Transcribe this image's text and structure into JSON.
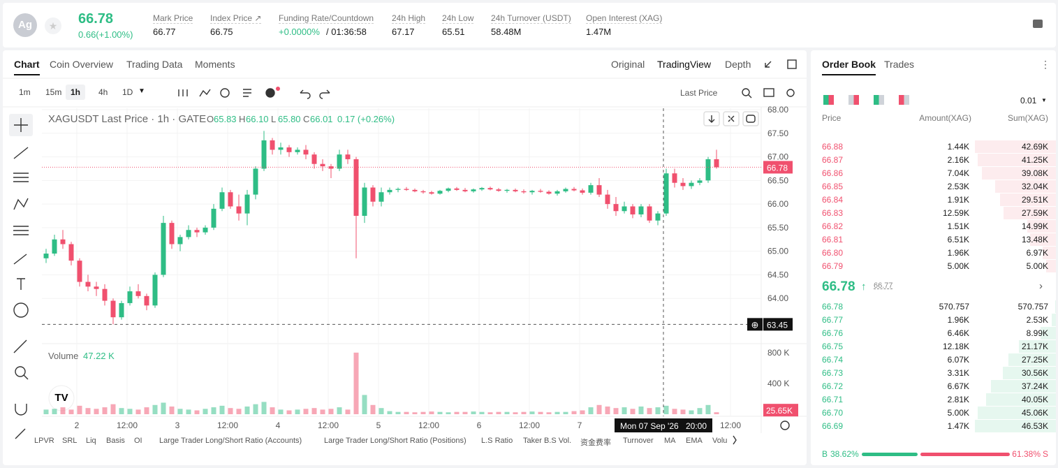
{
  "header": {
    "symbol_icon": "Ag",
    "price": "66.78",
    "change": "0.66(+1.00%)",
    "stats": [
      {
        "label": "Mark Price",
        "value": "66.77"
      },
      {
        "label": "Index Price ↗",
        "value": "66.75"
      },
      {
        "label": "Funding Rate/Countdown",
        "value": "+0.0000%",
        "extra": "/ 01:36:58"
      },
      {
        "label": "24h High",
        "value": "67.17"
      },
      {
        "label": "24h Low",
        "value": "65.51"
      },
      {
        "label": "24h Turnover (USDT)",
        "value": "58.48M"
      },
      {
        "label": "Open Interest (XAG)",
        "value": "1.47M"
      }
    ]
  },
  "tabs": [
    "Chart",
    "Coin Overview",
    "Trading Data",
    "Moments"
  ],
  "chart_modes": [
    "Original",
    "TradingView",
    "Depth"
  ],
  "intervals": [
    "1m",
    "15m",
    "1h",
    "4h",
    "1D"
  ],
  "price_type": "Last Price",
  "chart_data": {
    "type": "candlestick",
    "title": "XAGUSDT Last Price · 1h · GATE",
    "legend": [
      {
        "key": "O",
        "value": "65.83"
      },
      {
        "key": "H",
        "value": "66.10"
      },
      {
        "key": "L",
        "value": "65.80"
      },
      {
        "key": "C",
        "value": "66.01"
      }
    ],
    "legend_change": "0.17 (+0.26%)",
    "up_color": "#2ebd85",
    "down_color": "#f0506e",
    "candles": [
      [
        64.85,
        65.05,
        64.75,
        64.95
      ],
      [
        64.95,
        65.35,
        64.9,
        65.25
      ],
      [
        65.25,
        65.45,
        65.05,
        65.15
      ],
      [
        65.15,
        65.2,
        64.7,
        64.8
      ],
      [
        64.8,
        64.85,
        64.25,
        64.35
      ],
      [
        64.35,
        64.5,
        64.15,
        64.25
      ],
      [
        64.25,
        64.35,
        64.05,
        64.2
      ],
      [
        64.2,
        64.3,
        63.85,
        63.95
      ],
      [
        63.95,
        64.0,
        63.45,
        63.6
      ],
      [
        63.6,
        63.95,
        63.55,
        63.9
      ],
      [
        63.9,
        64.25,
        63.85,
        64.15
      ],
      [
        64.15,
        64.3,
        64.0,
        64.05
      ],
      [
        64.05,
        64.1,
        63.75,
        63.85
      ],
      [
        63.85,
        64.55,
        63.8,
        64.5
      ],
      [
        64.5,
        65.75,
        64.45,
        65.6
      ],
      [
        65.6,
        65.65,
        65.05,
        65.15
      ],
      [
        65.15,
        65.35,
        65.0,
        65.3
      ],
      [
        65.3,
        65.55,
        65.25,
        65.45
      ],
      [
        65.45,
        65.5,
        65.3,
        65.4
      ],
      [
        65.4,
        65.55,
        65.35,
        65.5
      ],
      [
        65.5,
        66.0,
        65.45,
        65.9
      ],
      [
        65.9,
        66.35,
        65.85,
        66.25
      ],
      [
        66.25,
        66.3,
        65.9,
        65.95
      ],
      [
        65.95,
        66.2,
        65.65,
        65.8
      ],
      [
        65.8,
        66.3,
        65.55,
        66.2
      ],
      [
        66.2,
        66.8,
        66.1,
        66.75
      ],
      [
        66.75,
        67.55,
        66.7,
        67.35
      ],
      [
        67.35,
        67.4,
        67.05,
        67.15
      ],
      [
        67.15,
        67.3,
        67.05,
        67.2
      ],
      [
        67.2,
        67.25,
        67.0,
        67.1
      ],
      [
        67.1,
        67.2,
        67.05,
        67.15
      ],
      [
        67.15,
        67.25,
        66.95,
        67.05
      ],
      [
        67.05,
        67.1,
        66.75,
        66.85
      ],
      [
        66.85,
        66.95,
        66.7,
        66.8
      ],
      [
        66.8,
        66.85,
        66.55,
        66.75
      ],
      [
        66.75,
        67.15,
        66.7,
        67.05
      ],
      [
        67.05,
        67.15,
        66.85,
        66.95
      ],
      [
        66.95,
        67.0,
        64.85,
        65.75
      ],
      [
        65.75,
        66.45,
        65.6,
        66.35
      ],
      [
        66.35,
        66.4,
        65.95,
        66.05
      ],
      [
        66.05,
        66.35,
        65.95,
        66.25
      ],
      [
        66.25,
        66.35,
        66.2,
        66.3
      ],
      [
        66.3,
        66.35,
        66.25,
        66.32
      ],
      [
        66.32,
        66.36,
        66.28,
        66.3
      ],
      [
        66.3,
        66.33,
        66.25,
        66.27
      ],
      [
        66.27,
        66.3,
        66.22,
        66.25
      ],
      [
        66.25,
        66.28,
        66.2,
        66.22
      ],
      [
        66.22,
        66.3,
        66.2,
        66.28
      ],
      [
        66.28,
        66.35,
        66.25,
        66.33
      ],
      [
        66.33,
        66.36,
        66.28,
        66.3
      ],
      [
        66.3,
        66.34,
        66.25,
        66.27
      ],
      [
        66.27,
        66.33,
        66.24,
        66.31
      ],
      [
        66.31,
        66.36,
        66.28,
        66.34
      ],
      [
        66.34,
        66.37,
        66.29,
        66.31
      ],
      [
        66.31,
        66.34,
        66.26,
        66.28
      ],
      [
        66.28,
        66.32,
        66.24,
        66.3
      ],
      [
        66.3,
        66.33,
        66.25,
        66.27
      ],
      [
        66.27,
        66.31,
        66.22,
        66.25
      ],
      [
        66.25,
        66.3,
        66.2,
        66.28
      ],
      [
        66.28,
        66.32,
        66.24,
        66.26
      ],
      [
        66.26,
        66.29,
        66.2,
        66.22
      ],
      [
        66.22,
        66.3,
        66.18,
        66.27
      ],
      [
        66.27,
        66.35,
        66.24,
        66.32
      ],
      [
        66.32,
        66.36,
        66.27,
        66.29
      ],
      [
        66.29,
        66.33,
        66.2,
        66.24
      ],
      [
        66.24,
        66.45,
        66.2,
        66.4
      ],
      [
        66.4,
        66.55,
        66.15,
        66.2
      ],
      [
        66.2,
        66.3,
        65.9,
        66.0
      ],
      [
        66.0,
        66.15,
        65.75,
        65.85
      ],
      [
        65.85,
        66.05,
        65.8,
        65.95
      ],
      [
        65.95,
        66.0,
        65.7,
        65.78
      ],
      [
        65.78,
        66.0,
        65.72,
        65.95
      ],
      [
        65.95,
        66.0,
        65.6,
        65.65
      ],
      [
        65.65,
        65.85,
        65.55,
        65.8
      ],
      [
        65.8,
        66.75,
        65.75,
        66.65
      ],
      [
        66.65,
        66.75,
        66.35,
        66.45
      ],
      [
        66.45,
        66.55,
        66.3,
        66.38
      ],
      [
        66.38,
        66.5,
        66.32,
        66.45
      ],
      [
        66.45,
        66.55,
        66.4,
        66.5
      ],
      [
        66.5,
        67.0,
        66.45,
        66.95
      ],
      [
        66.95,
        67.15,
        66.75,
        66.78
      ]
    ],
    "ylim": [
      63.07,
      68.03
    ],
    "yticks": [
      {
        "value": 64,
        "label": "64.00"
      },
      {
        "value": 64.5,
        "label": "64.50"
      },
      {
        "value": 65,
        "label": "65.00"
      },
      {
        "value": 65.5,
        "label": "65.50"
      },
      {
        "value": 66,
        "label": "66.00"
      },
      {
        "value": 66.5,
        "label": "66.50"
      },
      {
        "value": 67,
        "label": "67.00"
      },
      {
        "value": 67.5,
        "label": "67.50"
      },
      {
        "value": 68,
        "label": "68.00"
      }
    ],
    "last_price": {
      "value": 66.78,
      "label": "66.78"
    },
    "crosshair_price": {
      "value": 63.45,
      "label": "63.45"
    },
    "crosshair_time": [
      "Mon 07 Sep '26",
      "20:00"
    ],
    "volume_title": "Volume",
    "volume_value": "47.22 K",
    "volume": [
      60,
      70,
      90,
      60,
      110,
      80,
      70,
      90,
      130,
      80,
      70,
      60,
      90,
      120,
      150,
      100,
      70,
      60,
      50,
      70,
      90,
      110,
      80,
      70,
      100,
      130,
      160,
      90,
      60,
      50,
      60,
      70,
      80,
      60,
      70,
      90,
      60,
      800,
      250,
      120,
      80,
      40,
      30,
      30,
      25,
      30,
      35,
      30,
      25,
      30,
      30,
      35,
      30,
      25,
      30,
      30,
      25,
      30,
      35,
      30,
      25,
      30,
      30,
      40,
      50,
      90,
      120,
      100,
      80,
      90,
      70,
      100,
      80,
      90,
      110,
      70,
      60,
      50,
      80,
      120,
      25.65
    ],
    "volume_last_label": "25.65K",
    "vlim": [
      0,
      880
    ],
    "vticks": [
      {
        "value": 400,
        "label": "400 K"
      },
      {
        "value": 800,
        "label": "800 K"
      }
    ],
    "x_labels": [
      "2",
      "12:00",
      "3",
      "12:00",
      "4",
      "12:00",
      "5",
      "12:00",
      "6",
      "12:00",
      "7",
      "12:00"
    ],
    "grid": true
  },
  "indicators": [
    "LPVR",
    "SRL",
    "Liq",
    "Basis",
    "OI",
    "Large Trader Long/Short Ratio (Accounts)",
    "Large Trader Long/Short Ratio (Positions)",
    "L.S Ratio",
    "Taker B.S Vol.",
    "资金费率",
    "Turnover",
    "MA",
    "EMA",
    "Volu"
  ],
  "order_book": {
    "tabs": [
      "Order Book",
      "Trades"
    ],
    "precision": "0.01",
    "columns": [
      "Price",
      "Amount(XAG)",
      "Sum(XAG)"
    ],
    "asks": [
      [
        "66.88",
        "1.44K",
        "42.69K"
      ],
      [
        "66.87",
        "2.16K",
        "41.25K"
      ],
      [
        "66.86",
        "7.04K",
        "39.08K"
      ],
      [
        "66.85",
        "2.53K",
        "32.04K"
      ],
      [
        "66.84",
        "1.91K",
        "29.51K"
      ],
      [
        "66.83",
        "12.59K",
        "27.59K"
      ],
      [
        "66.82",
        "1.51K",
        "14.99K"
      ],
      [
        "66.81",
        "6.51K",
        "13.48K"
      ],
      [
        "66.80",
        "1.96K",
        "6.97K"
      ],
      [
        "66.79",
        "5.00K",
        "5.00K"
      ]
    ],
    "mid_price": "66.78",
    "mid_mark": "66.77",
    "bids": [
      [
        "66.78",
        "570.757",
        "570.757"
      ],
      [
        "66.77",
        "1.96K",
        "2.53K"
      ],
      [
        "66.76",
        "6.46K",
        "8.99K"
      ],
      [
        "66.75",
        "12.18K",
        "21.17K"
      ],
      [
        "66.74",
        "6.07K",
        "27.25K"
      ],
      [
        "66.73",
        "3.31K",
        "30.56K"
      ],
      [
        "66.72",
        "6.67K",
        "37.24K"
      ],
      [
        "66.71",
        "2.81K",
        "40.05K"
      ],
      [
        "66.70",
        "5.00K",
        "45.06K"
      ],
      [
        "66.69",
        "1.47K",
        "46.53K"
      ]
    ],
    "buy_label": "B",
    "buy_pct": "38.62%",
    "sell_pct": "61.38%",
    "sell_label": "S"
  }
}
